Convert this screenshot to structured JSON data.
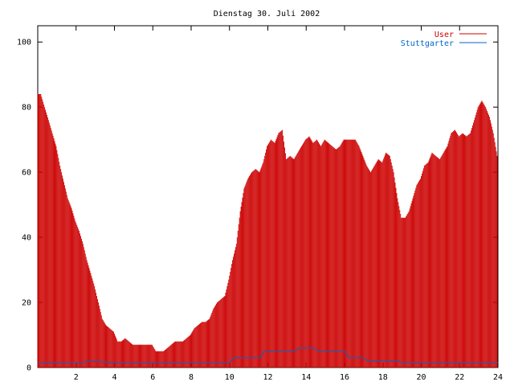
{
  "chart_data": {
    "type": "bar",
    "title": "Dienstag 30. Juli 2002",
    "xlim": [
      0,
      24
    ],
    "ylim": [
      0,
      105
    ],
    "x_ticks": [
      2,
      4,
      6,
      8,
      10,
      12,
      14,
      16,
      18,
      20,
      22,
      24
    ],
    "y_ticks": [
      0,
      20,
      40,
      60,
      80,
      100
    ],
    "grid": false,
    "legend_position": "top-right",
    "series": [
      {
        "name": "User",
        "color": "#cc0000",
        "style": "impulses",
        "x": [
          0.0,
          0.2,
          0.4,
          0.6,
          0.8,
          1.0,
          1.2,
          1.4,
          1.6,
          1.8,
          2.0,
          2.2,
          2.4,
          2.6,
          2.8,
          3.0,
          3.2,
          3.4,
          3.6,
          3.8,
          4.0,
          4.2,
          4.4,
          4.6,
          4.8,
          5.0,
          5.2,
          5.4,
          5.6,
          5.8,
          6.0,
          6.2,
          6.4,
          6.6,
          6.8,
          7.0,
          7.2,
          7.4,
          7.6,
          7.8,
          8.0,
          8.2,
          8.4,
          8.6,
          8.8,
          9.0,
          9.2,
          9.4,
          9.6,
          9.8,
          10.0,
          10.2,
          10.4,
          10.6,
          10.8,
          11.0,
          11.2,
          11.4,
          11.6,
          11.8,
          12.0,
          12.2,
          12.4,
          12.6,
          12.8,
          13.0,
          13.2,
          13.4,
          13.6,
          13.8,
          14.0,
          14.2,
          14.4,
          14.6,
          14.8,
          15.0,
          15.2,
          15.4,
          15.6,
          15.8,
          16.0,
          16.2,
          16.4,
          16.6,
          16.8,
          17.0,
          17.2,
          17.4,
          17.6,
          17.8,
          18.0,
          18.2,
          18.4,
          18.6,
          18.8,
          19.0,
          19.2,
          19.4,
          19.6,
          19.8,
          20.0,
          20.2,
          20.4,
          20.6,
          20.8,
          21.0,
          21.2,
          21.4,
          21.6,
          21.8,
          22.0,
          22.2,
          22.4,
          22.6,
          22.8,
          23.0,
          23.2,
          23.4,
          23.6,
          23.8
        ],
        "values": [
          84,
          80,
          76,
          72,
          68,
          62,
          57,
          52,
          49,
          45,
          42,
          38,
          33,
          29,
          25,
          20,
          15,
          13,
          12,
          11,
          8,
          8,
          9,
          8,
          7,
          7,
          7,
          7,
          7,
          7,
          5,
          5,
          5,
          6,
          7,
          8,
          8,
          8,
          9,
          10,
          12,
          13,
          14,
          14,
          15,
          18,
          20,
          21,
          22,
          27,
          33,
          38,
          48,
          55,
          58,
          60,
          61,
          60,
          63,
          68,
          70,
          69,
          72,
          73,
          64,
          65,
          64,
          66,
          68,
          70,
          71,
          69,
          70,
          68,
          70,
          69,
          68,
          67,
          68,
          70,
          70,
          70,
          70,
          68,
          65,
          62,
          60,
          62,
          64,
          63,
          66,
          65,
          60,
          52,
          46,
          46,
          48,
          52,
          56,
          58,
          62,
          63,
          66,
          65,
          64,
          66,
          68,
          72,
          73,
          71,
          72,
          71,
          72,
          76,
          80,
          82,
          80,
          77,
          72,
          65
        ]
      },
      {
        "name": "Stuttgarter",
        "color": "#0066cc",
        "style": "line",
        "x": [
          0.0,
          2.4,
          2.6,
          4.0,
          10.0,
          10.2,
          11.6,
          11.8,
          13.4,
          13.6,
          14.4,
          14.6,
          16.0,
          16.2,
          17.0,
          17.2,
          18.8,
          19.0,
          24.0
        ],
        "values": [
          1.5,
          1.5,
          2,
          1.5,
          1.5,
          3,
          3,
          5,
          5,
          6,
          6,
          5,
          5,
          3,
          3,
          2,
          2,
          1.5,
          1.5
        ]
      }
    ]
  }
}
